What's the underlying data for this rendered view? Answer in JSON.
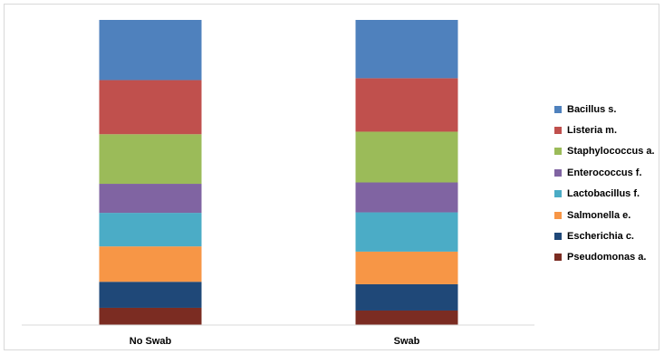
{
  "chart_data": {
    "type": "bar",
    "stacked": true,
    "categories": [
      "No Swab",
      "Swab"
    ],
    "series": [
      {
        "name": "Pseudomonas a.",
        "color": "#7B2C22",
        "values": [
          5.7,
          4.8
        ]
      },
      {
        "name": "Escherichia c.",
        "color": "#1F4878",
        "values": [
          8.6,
          8.7
        ]
      },
      {
        "name": "Salmonella e.",
        "color": "#F79646",
        "values": [
          11.7,
          10.8
        ]
      },
      {
        "name": "Lactobacillus f.",
        "color": "#4BACC6",
        "values": [
          11.1,
          13.0
        ]
      },
      {
        "name": "Enterococcus f.",
        "color": "#8064A2",
        "values": [
          9.6,
          9.9
        ]
      },
      {
        "name": "Staphylococcus a.",
        "color": "#9BBB59",
        "values": [
          16.4,
          16.8
        ]
      },
      {
        "name": "Listeria m.",
        "color": "#C0504D",
        "values": [
          17.9,
          17.7
        ]
      },
      {
        "name": "Bacillus s.",
        "color": "#4F81BD",
        "values": [
          19.9,
          19.3
        ]
      }
    ],
    "legend_position": "right",
    "grid": false
  }
}
